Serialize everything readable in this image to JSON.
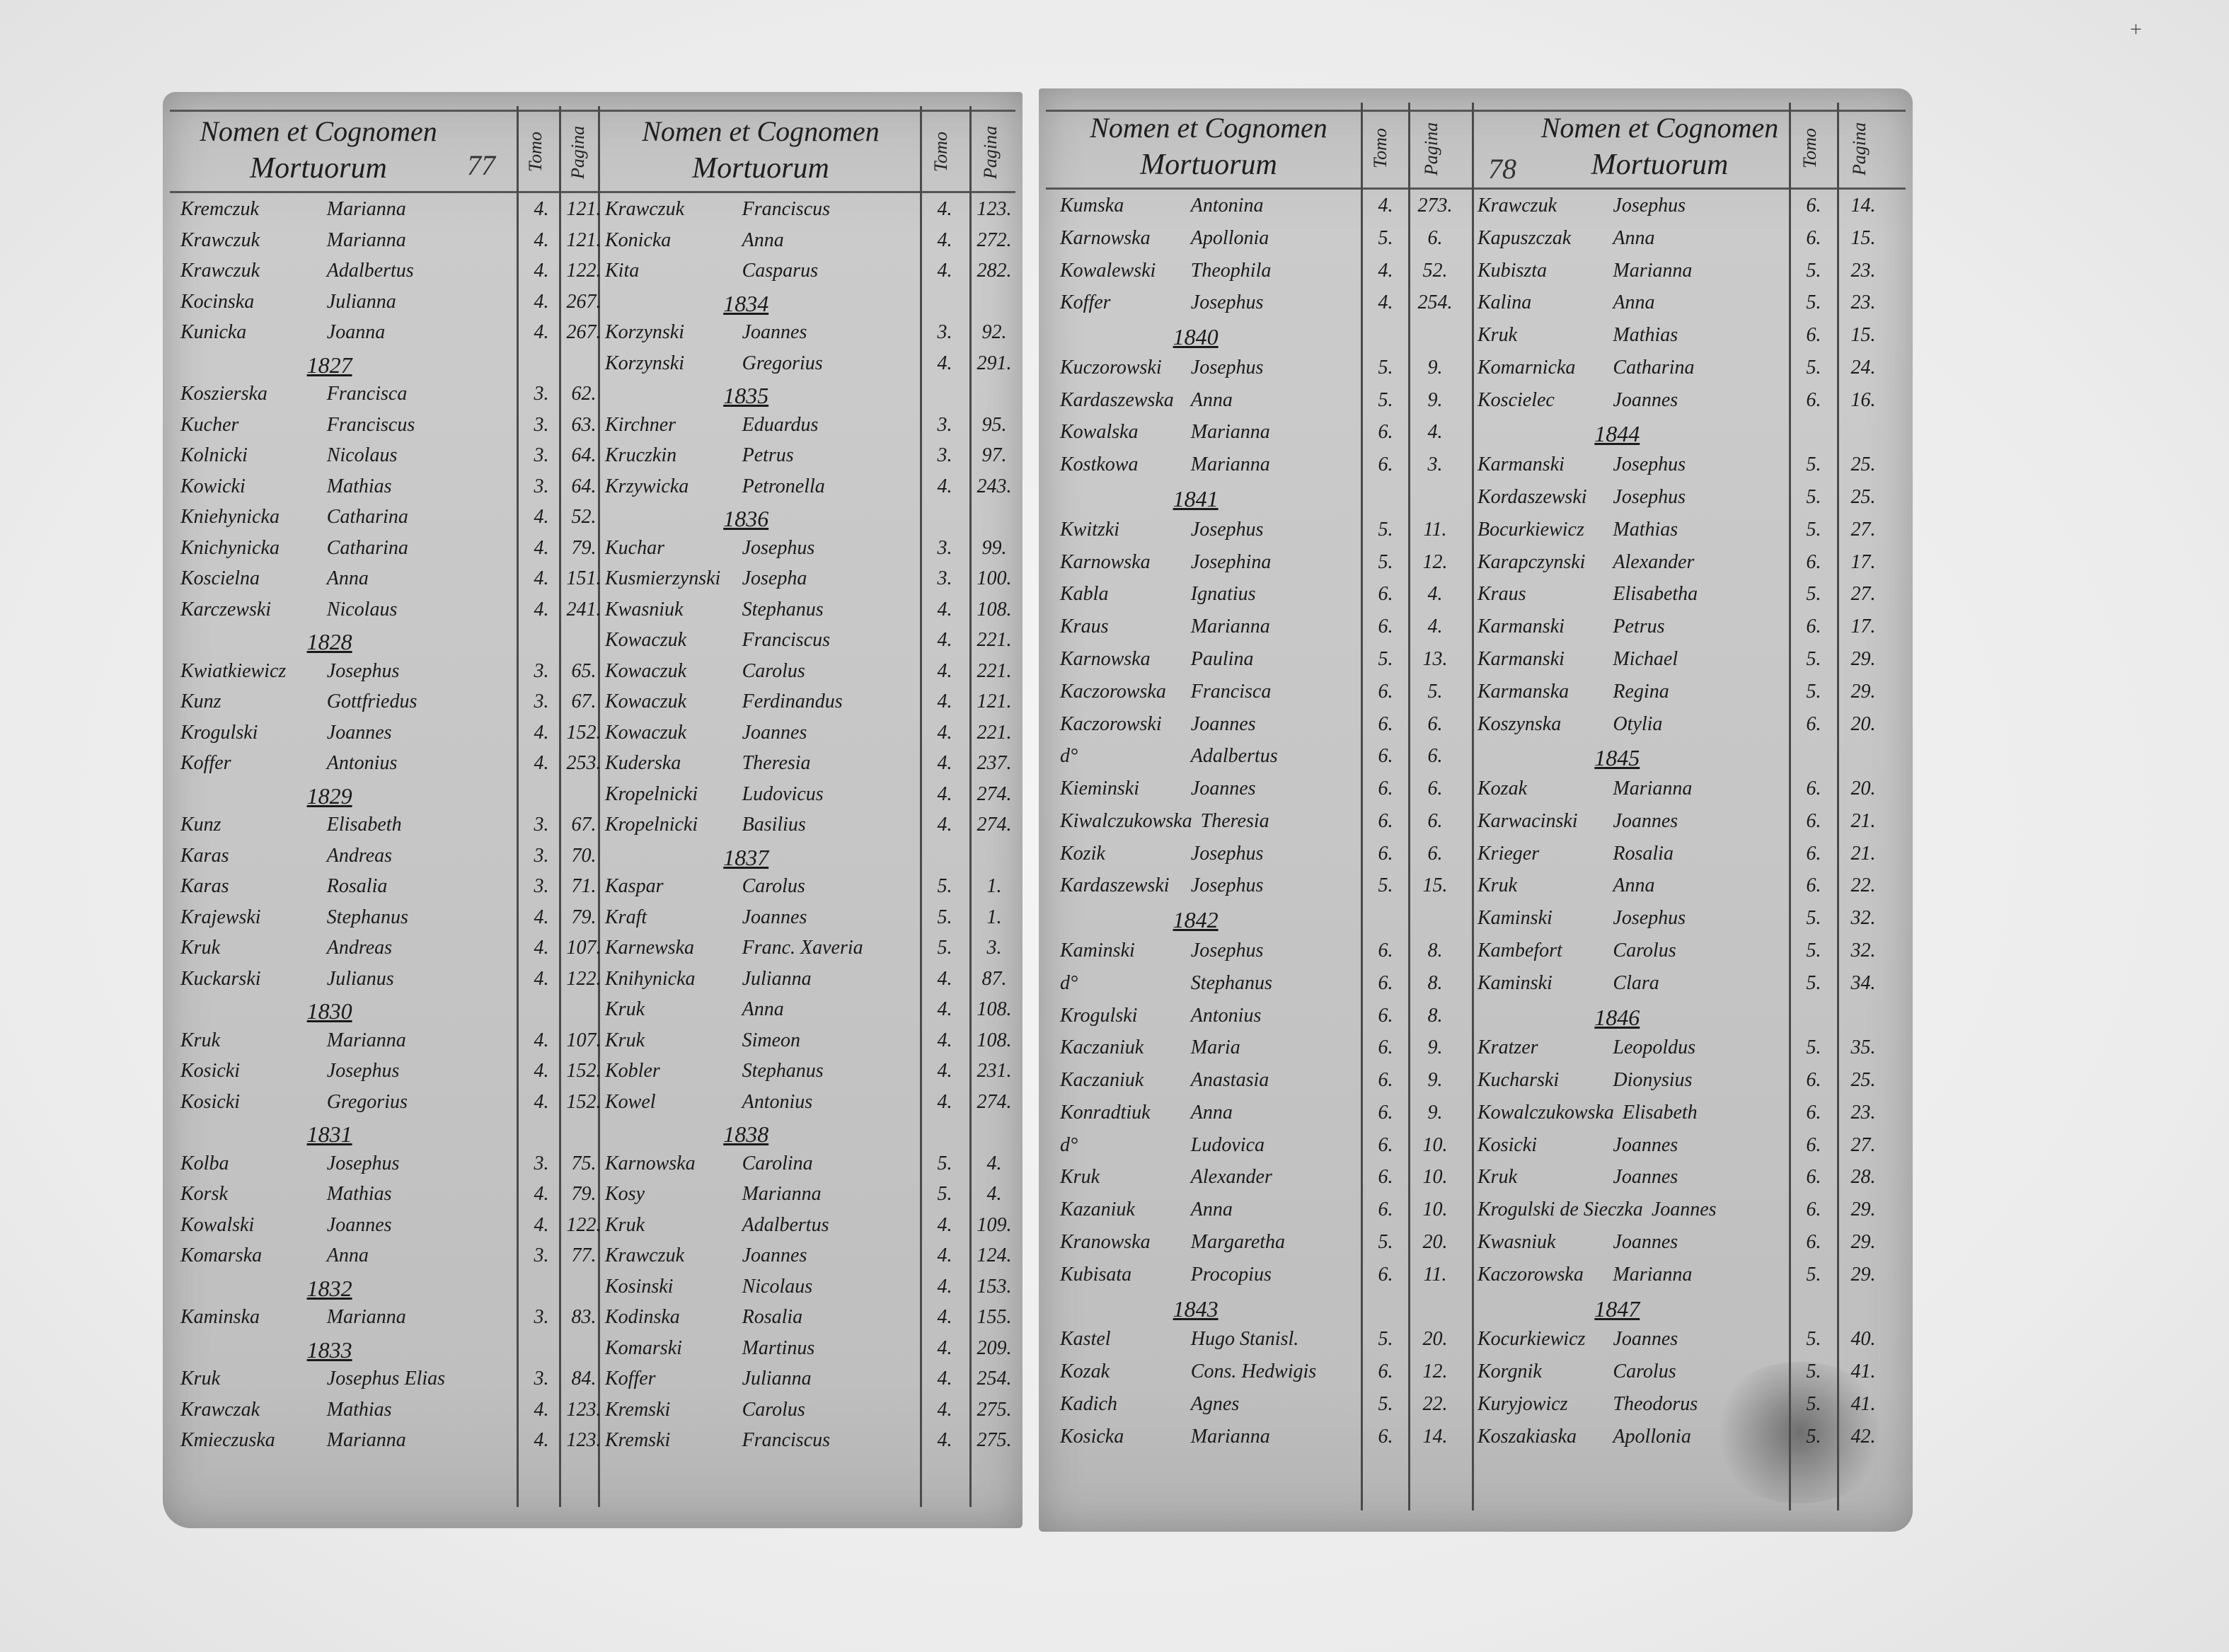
{
  "header": {
    "line1": "Nomen et Cognomen",
    "line2": "Mortuorum",
    "tomo": "Tomo",
    "pagina": "Pagina"
  },
  "page_numbers": {
    "left": "77",
    "right": "78"
  },
  "columns": [
    [
      {
        "s": "Kremczuk",
        "g": "Marianna",
        "t": "4.",
        "p": "121."
      },
      {
        "s": "Krawczuk",
        "g": "Marianna",
        "t": "4.",
        "p": "121."
      },
      {
        "s": "Krawczuk",
        "g": "Adalbertus",
        "t": "4.",
        "p": "122."
      },
      {
        "s": "Kocinska",
        "g": "Julianna",
        "t": "4.",
        "p": "267."
      },
      {
        "s": "Kunicka",
        "g": "Joanna",
        "t": "4.",
        "p": "267."
      },
      {
        "year": "1827"
      },
      {
        "s": "Koszierska",
        "g": "Francisca",
        "t": "3.",
        "p": "62."
      },
      {
        "s": "Kucher",
        "g": "Franciscus",
        "t": "3.",
        "p": "63."
      },
      {
        "s": "Kolnicki",
        "g": "Nicolaus",
        "t": "3.",
        "p": "64."
      },
      {
        "s": "Kowicki",
        "g": "Mathias",
        "t": "3.",
        "p": "64."
      },
      {
        "s": "Kniehynicka",
        "g": "Catharina",
        "t": "4.",
        "p": "52."
      },
      {
        "s": "Knichynicka",
        "g": "Catharina",
        "t": "4.",
        "p": "79."
      },
      {
        "s": "Koscielna",
        "g": "Anna",
        "t": "4.",
        "p": "151."
      },
      {
        "s": "Karczewski",
        "g": "Nicolaus",
        "t": "4.",
        "p": "241."
      },
      {
        "year": "1828"
      },
      {
        "s": "Kwiatkiewicz",
        "g": "Josephus",
        "t": "3.",
        "p": "65."
      },
      {
        "s": "Kunz",
        "g": "Gottfriedus",
        "t": "3.",
        "p": "67."
      },
      {
        "s": "Krogulski",
        "g": "Joannes",
        "t": "4.",
        "p": "152."
      },
      {
        "s": "Koffer",
        "g": "Antonius",
        "t": "4.",
        "p": "253."
      },
      {
        "year": "1829"
      },
      {
        "s": "Kunz",
        "g": "Elisabeth",
        "t": "3.",
        "p": "67."
      },
      {
        "s": "Karas",
        "g": "Andreas",
        "t": "3.",
        "p": "70."
      },
      {
        "s": "Karas",
        "g": "Rosalia",
        "t": "3.",
        "p": "71."
      },
      {
        "s": "Krajewski",
        "g": "Stephanus",
        "t": "4.",
        "p": "79."
      },
      {
        "s": "Kruk",
        "g": "Andreas",
        "t": "4.",
        "p": "107."
      },
      {
        "s": "Kuckarski",
        "g": "Julianus",
        "t": "4.",
        "p": "122."
      },
      {
        "year": "1830"
      },
      {
        "s": "Kruk",
        "g": "Marianna",
        "t": "4.",
        "p": "107."
      },
      {
        "s": "Kosicki",
        "g": "Josephus",
        "t": "4.",
        "p": "152."
      },
      {
        "s": "Kosicki",
        "g": "Gregorius",
        "t": "4.",
        "p": "152."
      },
      {
        "year": "1831"
      },
      {
        "s": "Kolba",
        "g": "Josephus",
        "t": "3.",
        "p": "75."
      },
      {
        "s": "Korsk",
        "g": "Mathias",
        "t": "4.",
        "p": "79."
      },
      {
        "s": "Kowalski",
        "g": "Joannes",
        "t": "4.",
        "p": "122."
      },
      {
        "s": "Komarska",
        "g": "Anna",
        "t": "3.",
        "p": "77."
      },
      {
        "year": "1832"
      },
      {
        "s": "Kaminska",
        "g": "Marianna",
        "t": "3.",
        "p": "83."
      },
      {
        "year": "1833"
      },
      {
        "s": "Kruk",
        "g": "Josephus Elias",
        "t": "3.",
        "p": "84."
      },
      {
        "s": "Krawczak",
        "g": "Mathias",
        "t": "4.",
        "p": "123."
      },
      {
        "s": "Kmieczuska",
        "g": "Marianna",
        "t": "4.",
        "p": "123."
      }
    ],
    [
      {
        "s": "Krawczuk",
        "g": "Franciscus",
        "t": "4.",
        "p": "123."
      },
      {
        "s": "Konicka",
        "g": "Anna",
        "t": "4.",
        "p": "272."
      },
      {
        "s": "Kita",
        "g": "Casparus",
        "t": "4.",
        "p": "282."
      },
      {
        "year": "1834"
      },
      {
        "s": "Korzynski",
        "g": "Joannes",
        "t": "3.",
        "p": "92."
      },
      {
        "s": "Korzynski",
        "g": "Gregorius",
        "t": "4.",
        "p": "291."
      },
      {
        "year": "1835"
      },
      {
        "s": "Kirchner",
        "g": "Eduardus",
        "t": "3.",
        "p": "95."
      },
      {
        "s": "Kruczkin",
        "g": "Petrus",
        "t": "3.",
        "p": "97."
      },
      {
        "s": "Krzywicka",
        "g": "Petronella",
        "t": "4.",
        "p": "243."
      },
      {
        "year": "1836"
      },
      {
        "s": "Kuchar",
        "g": "Josephus",
        "t": "3.",
        "p": "99."
      },
      {
        "s": "Kusmierzynski",
        "g": "Josepha",
        "t": "3.",
        "p": "100."
      },
      {
        "s": "Kwasniuk",
        "g": "Stephanus",
        "t": "4.",
        "p": "108."
      },
      {
        "s": "Kowaczuk",
        "g": "Franciscus",
        "t": "4.",
        "p": "221."
      },
      {
        "s": "Kowaczuk",
        "g": "Carolus",
        "t": "4.",
        "p": "221."
      },
      {
        "s": "Kowaczuk",
        "g": "Ferdinandus",
        "t": "4.",
        "p": "121."
      },
      {
        "s": "Kowaczuk",
        "g": "Joannes",
        "t": "4.",
        "p": "221."
      },
      {
        "s": "Kuderska",
        "g": "Theresia",
        "t": "4.",
        "p": "237."
      },
      {
        "s": "Kropelnicki",
        "g": "Ludovicus",
        "t": "4.",
        "p": "274."
      },
      {
        "s": "Kropelnicki",
        "g": "Basilius",
        "t": "4.",
        "p": "274."
      },
      {
        "year": "1837"
      },
      {
        "s": "Kaspar",
        "g": "Carolus",
        "t": "5.",
        "p": "1."
      },
      {
        "s": "Kraft",
        "g": "Joannes",
        "t": "5.",
        "p": "1."
      },
      {
        "s": "Karnewska",
        "g": "Franc. Xaveria",
        "t": "5.",
        "p": "3."
      },
      {
        "s": "Knihynicka",
        "g": "Julianna",
        "t": "4.",
        "p": "87."
      },
      {
        "s": "Kruk",
        "g": "Anna",
        "t": "4.",
        "p": "108."
      },
      {
        "s": "Kruk",
        "g": "Simeon",
        "t": "4.",
        "p": "108."
      },
      {
        "s": "Kobler",
        "g": "Stephanus",
        "t": "4.",
        "p": "231."
      },
      {
        "s": "Kowel",
        "g": "Antonius",
        "t": "4.",
        "p": "274."
      },
      {
        "year": "1838"
      },
      {
        "s": "Karnowska",
        "g": "Carolina",
        "t": "5.",
        "p": "4."
      },
      {
        "s": "Kosy",
        "g": "Marianna",
        "t": "5.",
        "p": "4."
      },
      {
        "s": "Kruk",
        "g": "Adalbertus",
        "t": "4.",
        "p": "109."
      },
      {
        "s": "Krawczuk",
        "g": "Joannes",
        "t": "4.",
        "p": "124."
      },
      {
        "s": "Kosinski",
        "g": "Nicolaus",
        "t": "4.",
        "p": "153."
      },
      {
        "s": "Kodinska",
        "g": "Rosalia",
        "t": "4.",
        "p": "155."
      },
      {
        "s": "Komarski",
        "g": "Martinus",
        "t": "4.",
        "p": "209."
      },
      {
        "s": "Koffer",
        "g": "Julianna",
        "t": "4.",
        "p": "254."
      },
      {
        "s": "Kremski",
        "g": "Carolus",
        "t": "4.",
        "p": "275."
      },
      {
        "s": "Kremski",
        "g": "Franciscus",
        "t": "4.",
        "p": "275."
      }
    ],
    [
      {
        "s": "Kumska",
        "g": "Antonina",
        "t": "4.",
        "p": "273."
      },
      {
        "s": "Karnowska",
        "g": "Apollonia",
        "t": "5.",
        "p": "6."
      },
      {
        "s": "Kowalewski",
        "g": "Theophila",
        "t": "4.",
        "p": "52."
      },
      {
        "s": "Koffer",
        "g": "Josephus",
        "t": "4.",
        "p": "254."
      },
      {
        "year": "1840"
      },
      {
        "s": "Kuczorowski",
        "g": "Josephus",
        "t": "5.",
        "p": "9."
      },
      {
        "s": "Kardaszewska",
        "g": "Anna",
        "t": "5.",
        "p": "9."
      },
      {
        "s": "Kowalska",
        "g": "Marianna",
        "t": "6.",
        "p": "4."
      },
      {
        "s": "Kostkowa",
        "g": "Marianna",
        "t": "6.",
        "p": "3."
      },
      {
        "year": "1841"
      },
      {
        "s": "Kwitzki",
        "g": "Josephus",
        "t": "5.",
        "p": "11."
      },
      {
        "s": "Karnowska",
        "g": "Josephina",
        "t": "5.",
        "p": "12."
      },
      {
        "s": "Kabla",
        "g": "Ignatius",
        "t": "6.",
        "p": "4."
      },
      {
        "s": "Kraus",
        "g": "Marianna",
        "t": "6.",
        "p": "4."
      },
      {
        "s": "Karnowska",
        "g": "Paulina",
        "t": "5.",
        "p": "13."
      },
      {
        "s": "Kaczorowska",
        "g": "Francisca",
        "t": "6.",
        "p": "5."
      },
      {
        "s": "Kaczorowski",
        "g": "Joannes",
        "t": "6.",
        "p": "6."
      },
      {
        "s": "d°",
        "g": "Adalbertus",
        "t": "6.",
        "p": "6."
      },
      {
        "s": "Kieminski",
        "g": "Joannes",
        "t": "6.",
        "p": "6."
      },
      {
        "s": "Kiwalczukowska",
        "g": "Theresia",
        "t": "6.",
        "p": "6."
      },
      {
        "s": "Kozik",
        "g": "Josephus",
        "t": "6.",
        "p": "6."
      },
      {
        "s": "Kardaszewski",
        "g": "Josephus",
        "t": "5.",
        "p": "15."
      },
      {
        "year": "1842"
      },
      {
        "s": "Kaminski",
        "g": "Josephus",
        "t": "6.",
        "p": "8."
      },
      {
        "s": "d°",
        "g": "Stephanus",
        "t": "6.",
        "p": "8."
      },
      {
        "s": "Krogulski",
        "g": "Antonius",
        "t": "6.",
        "p": "8."
      },
      {
        "s": "Kaczaniuk",
        "g": "Maria",
        "t": "6.",
        "p": "9."
      },
      {
        "s": "Kaczaniuk",
        "g": "Anastasia",
        "t": "6.",
        "p": "9."
      },
      {
        "s": "Konradtiuk",
        "g": "Anna",
        "t": "6.",
        "p": "9."
      },
      {
        "s": "d°",
        "g": "Ludovica",
        "t": "6.",
        "p": "10."
      },
      {
        "s": "Kruk",
        "g": "Alexander",
        "t": "6.",
        "p": "10."
      },
      {
        "s": "Kazaniuk",
        "g": "Anna",
        "t": "6.",
        "p": "10."
      },
      {
        "s": "Kranowska",
        "g": "Margaretha",
        "t": "5.",
        "p": "20."
      },
      {
        "s": "Kubisata",
        "g": "Procopius",
        "t": "6.",
        "p": "11."
      },
      {
        "year": "1843"
      },
      {
        "s": "Kastel",
        "g": "Hugo Stanisl.",
        "t": "5.",
        "p": "20."
      },
      {
        "s": "Kozak",
        "g": "Cons. Hedwigis",
        "t": "6.",
        "p": "12."
      },
      {
        "s": "Kadich",
        "g": "Agnes",
        "t": "5.",
        "p": "22."
      },
      {
        "s": "Kosicka",
        "g": "Marianna",
        "t": "6.",
        "p": "14."
      }
    ],
    [
      {
        "s": "Krawczuk",
        "g": "Josephus",
        "t": "6.",
        "p": "14."
      },
      {
        "s": "Kapuszczak",
        "g": "Anna",
        "t": "6.",
        "p": "15."
      },
      {
        "s": "Kubiszta",
        "g": "Marianna",
        "t": "5.",
        "p": "23."
      },
      {
        "s": "Kalina",
        "g": "Anna",
        "t": "5.",
        "p": "23."
      },
      {
        "s": "Kruk",
        "g": "Mathias",
        "t": "6.",
        "p": "15."
      },
      {
        "s": "Komarnicka",
        "g": "Catharina",
        "t": "5.",
        "p": "24."
      },
      {
        "s": "Koscielec",
        "g": "Joannes",
        "t": "6.",
        "p": "16."
      },
      {
        "year": "1844"
      },
      {
        "s": "Karmanski",
        "g": "Josephus",
        "t": "5.",
        "p": "25."
      },
      {
        "s": "Kordaszewski",
        "g": "Josephus",
        "t": "5.",
        "p": "25."
      },
      {
        "s": "Bocurkiewicz",
        "g": "Mathias",
        "t": "5.",
        "p": "27."
      },
      {
        "s": "Karapczynski",
        "g": "Alexander",
        "t": "6.",
        "p": "17."
      },
      {
        "s": "Kraus",
        "g": "Elisabetha",
        "t": "5.",
        "p": "27."
      },
      {
        "s": "Karmanski",
        "g": "Petrus",
        "t": "6.",
        "p": "17."
      },
      {
        "s": "Karmanski",
        "g": "Michael",
        "t": "5.",
        "p": "29."
      },
      {
        "s": "Karmanska",
        "g": "Regina",
        "t": "5.",
        "p": "29."
      },
      {
        "s": "Koszynska",
        "g": "Otylia",
        "t": "6.",
        "p": "20."
      },
      {
        "year": "1845"
      },
      {
        "s": "Kozak",
        "g": "Marianna",
        "t": "6.",
        "p": "20."
      },
      {
        "s": "Karwacinski",
        "g": "Joannes",
        "t": "6.",
        "p": "21."
      },
      {
        "s": "Krieger",
        "g": "Rosalia",
        "t": "6.",
        "p": "21."
      },
      {
        "s": "Kruk",
        "g": "Anna",
        "t": "6.",
        "p": "22."
      },
      {
        "s": "Kaminski",
        "g": "Josephus",
        "t": "5.",
        "p": "32."
      },
      {
        "s": "Kambefort",
        "g": "Carolus",
        "t": "5.",
        "p": "32."
      },
      {
        "s": "Kaminski",
        "g": "Clara",
        "t": "5.",
        "p": "34."
      },
      {
        "year": "1846"
      },
      {
        "s": "Kratzer",
        "g": "Leopoldus",
        "t": "5.",
        "p": "35."
      },
      {
        "s": "Kucharski",
        "g": "Dionysius",
        "t": "6.",
        "p": "25."
      },
      {
        "s": "Kowalczukowska",
        "g": "Elisabeth",
        "t": "6.",
        "p": "23."
      },
      {
        "s": "Kosicki",
        "g": "Joannes",
        "t": "6.",
        "p": "27."
      },
      {
        "s": "Kruk",
        "g": "Joannes",
        "t": "6.",
        "p": "28."
      },
      {
        "s": "Krogulski de Sieczka",
        "g": "Joannes",
        "t": "6.",
        "p": "29."
      },
      {
        "s": "Kwasniuk",
        "g": "Joannes",
        "t": "6.",
        "p": "29."
      },
      {
        "s": "Kaczorowska",
        "g": "Marianna",
        "t": "5.",
        "p": "29."
      },
      {
        "year": "1847"
      },
      {
        "s": "Kocurkiewicz",
        "g": "Joannes",
        "t": "5.",
        "p": "40."
      },
      {
        "s": "Korgnik",
        "g": "Carolus",
        "t": "5.",
        "p": "41."
      },
      {
        "s": "Kuryjowicz",
        "g": "Theodorus",
        "t": "5.",
        "p": "41."
      },
      {
        "s": "Koszakiaska",
        "g": "Apollonia",
        "t": "5.",
        "p": "42."
      }
    ]
  ]
}
